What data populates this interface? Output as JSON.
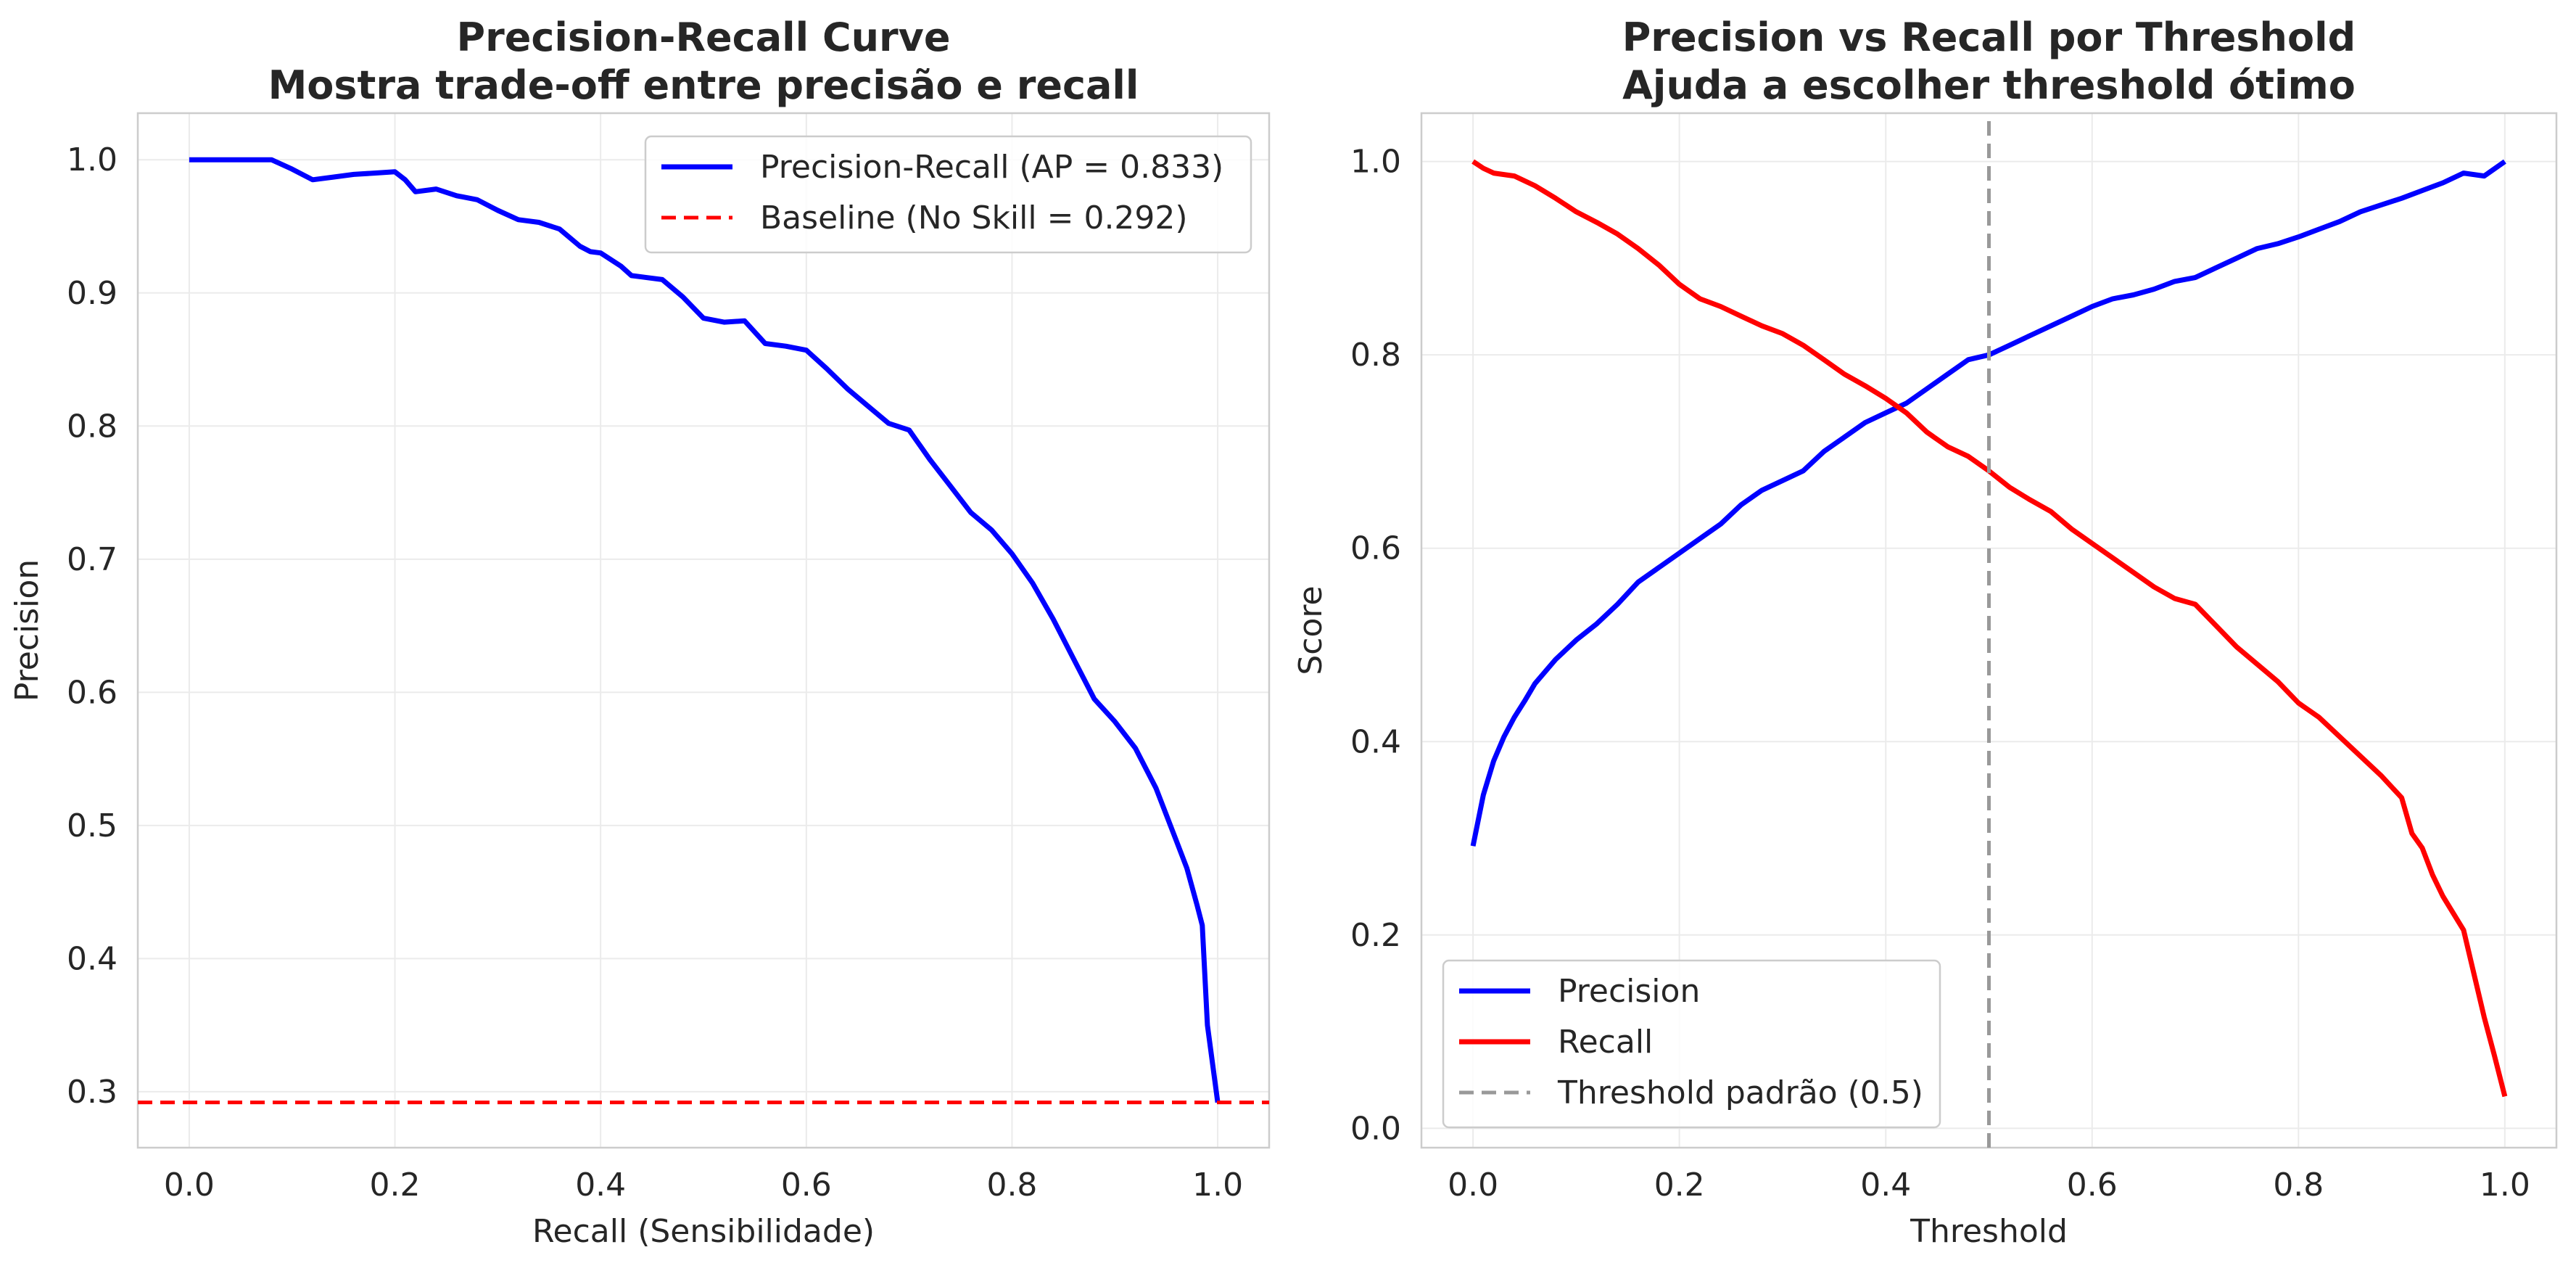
{
  "chart_data": [
    {
      "type": "line",
      "title": "Precision-Recall Curve\nMostra trade-off entre precisão e recall",
      "xlabel": "Recall (Sensibilidade)",
      "ylabel": "Precision",
      "xlim": [
        -0.05,
        1.05
      ],
      "ylim": [
        0.258,
        1.035
      ],
      "xticks": [
        0.0,
        0.2,
        0.4,
        0.6,
        0.8,
        1.0
      ],
      "yticks": [
        0.3,
        0.4,
        0.5,
        0.6,
        0.7,
        0.8,
        0.9,
        1.0
      ],
      "grid": true,
      "legend_position": "top-right",
      "series": [
        {
          "name": "Precision-Recall (AP = 0.833)",
          "color": "#0000ff",
          "style": "solid",
          "x": [
            0.0,
            0.02,
            0.04,
            0.06,
            0.08,
            0.1,
            0.12,
            0.14,
            0.16,
            0.18,
            0.2,
            0.21,
            0.22,
            0.24,
            0.26,
            0.28,
            0.3,
            0.32,
            0.34,
            0.36,
            0.38,
            0.39,
            0.4,
            0.42,
            0.43,
            0.44,
            0.46,
            0.48,
            0.5,
            0.52,
            0.54,
            0.56,
            0.58,
            0.6,
            0.62,
            0.64,
            0.66,
            0.68,
            0.7,
            0.72,
            0.74,
            0.76,
            0.78,
            0.8,
            0.82,
            0.84,
            0.86,
            0.88,
            0.9,
            0.92,
            0.94,
            0.95,
            0.96,
            0.97,
            0.98,
            0.985,
            0.99,
            1.0
          ],
          "y": [
            1.0,
            1.0,
            1.0,
            1.0,
            1.0,
            0.993,
            0.985,
            0.987,
            0.989,
            0.99,
            0.991,
            0.985,
            0.976,
            0.978,
            0.973,
            0.97,
            0.962,
            0.955,
            0.953,
            0.948,
            0.935,
            0.931,
            0.93,
            0.92,
            0.913,
            0.912,
            0.91,
            0.897,
            0.881,
            0.878,
            0.879,
            0.862,
            0.86,
            0.857,
            0.843,
            0.828,
            0.815,
            0.802,
            0.797,
            0.775,
            0.755,
            0.735,
            0.722,
            0.704,
            0.682,
            0.655,
            0.625,
            0.595,
            0.578,
            0.558,
            0.528,
            0.508,
            0.488,
            0.468,
            0.44,
            0.425,
            0.35,
            0.292
          ]
        },
        {
          "name": "Baseline (No Skill = 0.292)",
          "color": "#ff0000",
          "style": "dashed",
          "x": [
            -0.05,
            1.05
          ],
          "y": [
            0.292,
            0.292
          ]
        }
      ]
    },
    {
      "type": "line",
      "title": "Precision vs Recall por Threshold\nAjuda a escolher threshold ótimo",
      "xlabel": "Threshold",
      "ylabel": "Score",
      "xlim": [
        -0.05,
        1.05
      ],
      "ylim": [
        -0.02,
        1.05
      ],
      "xticks": [
        0.0,
        0.2,
        0.4,
        0.6,
        0.8,
        1.0
      ],
      "yticks": [
        0.0,
        0.2,
        0.4,
        0.6,
        0.8,
        1.0
      ],
      "grid": true,
      "legend_position": "bottom-left",
      "series": [
        {
          "name": "Precision",
          "color": "#0000ff",
          "style": "solid",
          "x": [
            0.0,
            0.01,
            0.02,
            0.03,
            0.04,
            0.05,
            0.06,
            0.08,
            0.1,
            0.12,
            0.14,
            0.16,
            0.18,
            0.2,
            0.22,
            0.24,
            0.26,
            0.28,
            0.3,
            0.32,
            0.34,
            0.36,
            0.38,
            0.4,
            0.42,
            0.44,
            0.46,
            0.48,
            0.5,
            0.52,
            0.54,
            0.56,
            0.58,
            0.6,
            0.62,
            0.64,
            0.66,
            0.68,
            0.7,
            0.72,
            0.74,
            0.76,
            0.78,
            0.8,
            0.82,
            0.84,
            0.86,
            0.88,
            0.9,
            0.92,
            0.94,
            0.96,
            0.98,
            1.0
          ],
          "y": [
            0.292,
            0.345,
            0.38,
            0.405,
            0.425,
            0.442,
            0.46,
            0.485,
            0.505,
            0.522,
            0.542,
            0.565,
            0.58,
            0.595,
            0.61,
            0.625,
            0.645,
            0.66,
            0.67,
            0.68,
            0.7,
            0.715,
            0.73,
            0.74,
            0.75,
            0.765,
            0.78,
            0.795,
            0.8,
            0.81,
            0.82,
            0.83,
            0.84,
            0.85,
            0.858,
            0.862,
            0.868,
            0.876,
            0.88,
            0.89,
            0.9,
            0.91,
            0.915,
            0.922,
            0.93,
            0.938,
            0.948,
            0.955,
            0.962,
            0.97,
            0.978,
            0.988,
            0.985,
            1.0
          ]
        },
        {
          "name": "Recall",
          "color": "#ff0000",
          "style": "solid",
          "x": [
            0.0,
            0.01,
            0.02,
            0.04,
            0.06,
            0.08,
            0.1,
            0.12,
            0.14,
            0.16,
            0.18,
            0.2,
            0.22,
            0.24,
            0.26,
            0.28,
            0.3,
            0.32,
            0.34,
            0.36,
            0.38,
            0.4,
            0.42,
            0.44,
            0.46,
            0.48,
            0.5,
            0.52,
            0.54,
            0.56,
            0.58,
            0.6,
            0.62,
            0.64,
            0.66,
            0.68,
            0.7,
            0.72,
            0.74,
            0.76,
            0.78,
            0.8,
            0.82,
            0.84,
            0.86,
            0.88,
            0.9,
            0.91,
            0.92,
            0.93,
            0.94,
            0.96,
            0.97,
            0.98,
            0.99,
            1.0
          ],
          "y": [
            1.0,
            0.993,
            0.988,
            0.985,
            0.975,
            0.962,
            0.948,
            0.937,
            0.925,
            0.91,
            0.893,
            0.873,
            0.858,
            0.85,
            0.84,
            0.83,
            0.822,
            0.81,
            0.795,
            0.78,
            0.768,
            0.755,
            0.74,
            0.72,
            0.705,
            0.695,
            0.68,
            0.663,
            0.65,
            0.638,
            0.62,
            0.605,
            0.59,
            0.575,
            0.56,
            0.548,
            0.542,
            0.52,
            0.498,
            0.48,
            0.462,
            0.44,
            0.425,
            0.405,
            0.385,
            0.365,
            0.342,
            0.305,
            0.29,
            0.262,
            0.24,
            0.205,
            0.16,
            0.115,
            0.075,
            0.033
          ]
        },
        {
          "name": "Threshold padrão (0.5)",
          "color": "#999999",
          "style": "dashed",
          "orientation": "vertical",
          "x": [
            0.5,
            0.5
          ],
          "y": [
            -0.02,
            1.05
          ]
        }
      ]
    }
  ]
}
